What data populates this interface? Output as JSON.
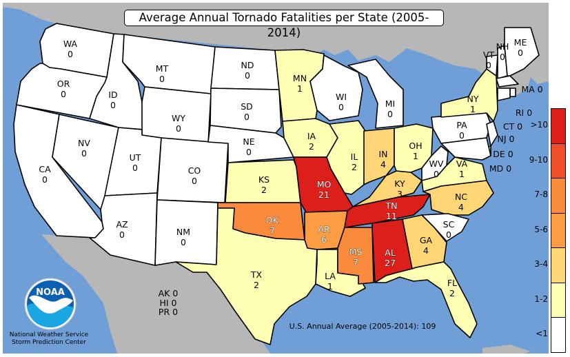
{
  "title": "Average Annual Tornado Fatalities per State (2005-2014)",
  "colors": {
    "ocean": "#6f9fd6",
    "land_outside": "#b7b7b7",
    "bins": {
      "<1": "#ffffff",
      "1-2": "#ffffb3",
      "3-4": "#fed676",
      "5-6": "#fd9d43",
      "7-8": "#fb8b3c",
      "9-10": "#f04e2a",
      ">10": "#dc1f1b"
    }
  },
  "states": [
    {
      "abbr": "WA",
      "value": "0",
      "bin": "<1"
    },
    {
      "abbr": "OR",
      "value": "0",
      "bin": "<1"
    },
    {
      "abbr": "CA",
      "value": "0",
      "bin": "<1"
    },
    {
      "abbr": "NV",
      "value": "0",
      "bin": "<1"
    },
    {
      "abbr": "ID",
      "value": "0",
      "bin": "<1"
    },
    {
      "abbr": "MT",
      "value": "0",
      "bin": "<1"
    },
    {
      "abbr": "WY",
      "value": "0",
      "bin": "<1"
    },
    {
      "abbr": "UT",
      "value": "0",
      "bin": "<1"
    },
    {
      "abbr": "AZ",
      "value": "0",
      "bin": "<1"
    },
    {
      "abbr": "CO",
      "value": "0",
      "bin": "<1"
    },
    {
      "abbr": "NM",
      "value": "0",
      "bin": "<1"
    },
    {
      "abbr": "ND",
      "value": "0",
      "bin": "<1"
    },
    {
      "abbr": "SD",
      "value": "0",
      "bin": "<1"
    },
    {
      "abbr": "NE",
      "value": "0",
      "bin": "<1"
    },
    {
      "abbr": "KS",
      "value": "2",
      "bin": "1-2"
    },
    {
      "abbr": "OK",
      "value": "7",
      "bin": "7-8"
    },
    {
      "abbr": "TX",
      "value": "2",
      "bin": "1-2"
    },
    {
      "abbr": "MN",
      "value": "1",
      "bin": "1-2"
    },
    {
      "abbr": "IA",
      "value": "2",
      "bin": "1-2"
    },
    {
      "abbr": "MO",
      "value": "21",
      "bin": ">10"
    },
    {
      "abbr": "AR",
      "value": "6",
      "bin": "5-6"
    },
    {
      "abbr": "LA",
      "value": "1",
      "bin": "1-2"
    },
    {
      "abbr": "WI",
      "value": "0",
      "bin": "<1"
    },
    {
      "abbr": "IL",
      "value": "2",
      "bin": "1-2"
    },
    {
      "abbr": "MS",
      "value": "7",
      "bin": "7-8"
    },
    {
      "abbr": "MI",
      "value": "0",
      "bin": "<1"
    },
    {
      "abbr": "IN",
      "value": "4",
      "bin": "3-4"
    },
    {
      "abbr": "KY",
      "value": "3",
      "bin": "3-4"
    },
    {
      "abbr": "TN",
      "value": "11",
      "bin": ">10"
    },
    {
      "abbr": "AL",
      "value": "27",
      "bin": ">10"
    },
    {
      "abbr": "OH",
      "value": "1",
      "bin": "1-2"
    },
    {
      "abbr": "WV",
      "value": "0",
      "bin": "<1"
    },
    {
      "abbr": "VA",
      "value": "1",
      "bin": "1-2"
    },
    {
      "abbr": "NC",
      "value": "4",
      "bin": "3-4"
    },
    {
      "abbr": "SC",
      "value": "0",
      "bin": "<1"
    },
    {
      "abbr": "GA",
      "value": "4",
      "bin": "3-4"
    },
    {
      "abbr": "FL",
      "value": "2",
      "bin": "1-2"
    },
    {
      "abbr": "PA",
      "value": "0",
      "bin": "<1"
    },
    {
      "abbr": "NY",
      "value": "1",
      "bin": "1-2"
    },
    {
      "abbr": "VT",
      "value": "0",
      "bin": "<1"
    },
    {
      "abbr": "NH",
      "value": "0",
      "bin": "<1"
    },
    {
      "abbr": "ME",
      "value": "0",
      "bin": "<1"
    },
    {
      "abbr": "MA",
      "value": "0",
      "bin": "<1"
    },
    {
      "abbr": "RI",
      "value": "0",
      "bin": "<1"
    },
    {
      "abbr": "CT",
      "value": "0",
      "bin": "<1"
    },
    {
      "abbr": "NJ",
      "value": "0",
      "bin": "<1"
    },
    {
      "abbr": "DE",
      "value": "0",
      "bin": "<1"
    },
    {
      "abbr": "MD",
      "value": "0",
      "bin": "<1"
    }
  ],
  "territories": [
    {
      "abbr": "AK",
      "value": "0"
    },
    {
      "abbr": "HI",
      "value": "0"
    },
    {
      "abbr": "PR",
      "value": "0"
    }
  ],
  "average_text": "U.S. Annual Average (2005-2014): 109",
  "credit": {
    "line1": "National Weather Service",
    "line2": "Storm Prediction Center",
    "logo_text": "NOAA"
  },
  "legend": [
    ">10",
    "9-10",
    "7-8",
    "5-6",
    "3-4",
    "1-2",
    "<1"
  ]
}
